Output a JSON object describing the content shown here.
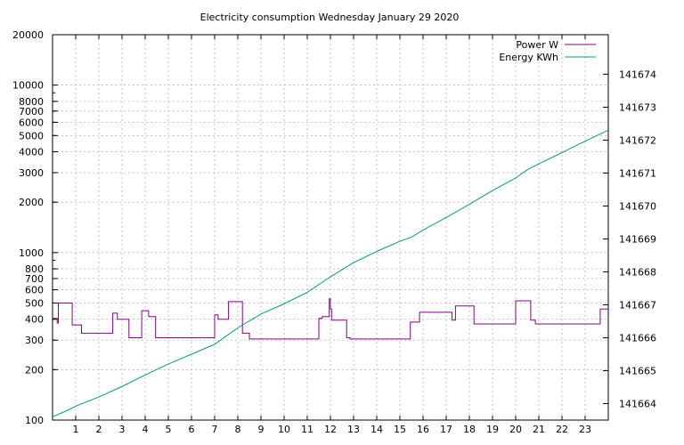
{
  "chart_data": {
    "type": "line",
    "title": "Electricity consumption Wednesday January 29 2020",
    "xlabel": "",
    "ylabel": "",
    "y2label": "",
    "grid": true,
    "legend_position": "top-right",
    "xlim": [
      0,
      24
    ],
    "x_ticks": [
      1,
      2,
      3,
      4,
      5,
      6,
      7,
      8,
      9,
      10,
      11,
      12,
      13,
      14,
      15,
      16,
      17,
      18,
      19,
      20,
      21,
      22,
      23
    ],
    "ylim": [
      100,
      20000
    ],
    "y_scale": "log",
    "y_ticks": [
      {
        "value": 100,
        "label": "100"
      },
      {
        "value": 200,
        "label": "200"
      },
      {
        "value": 300,
        "label": "300"
      },
      {
        "value": 400,
        "label": "400"
      },
      {
        "value": 500,
        "label": "500"
      },
      {
        "value": 600,
        "label": "600"
      },
      {
        "value": 700,
        "label": "700"
      },
      {
        "value": 800,
        "label": "800"
      },
      {
        "value": 1000,
        "label": "1000"
      },
      {
        "value": 2000,
        "label": "2000"
      },
      {
        "value": 3000,
        "label": "3000"
      },
      {
        "value": 4000,
        "label": "4000"
      },
      {
        "value": 5000,
        "label": "5000"
      },
      {
        "value": 6000,
        "label": "6000"
      },
      {
        "value": 7000,
        "label": "7000"
      },
      {
        "value": 8000,
        "label": "8000"
      },
      {
        "value": 10000,
        "label": "10000"
      },
      {
        "value": 20000,
        "label": "20000"
      }
    ],
    "y2lim": [
      141663.5,
      141675.2
    ],
    "y2_ticks": [
      141664,
      141665,
      141666,
      141667,
      141668,
      141669,
      141670,
      141671,
      141672,
      141673,
      141674
    ],
    "series": [
      {
        "name": "Power W",
        "axis": "y",
        "color": "#8b008b",
        "step": true,
        "points": [
          [
            0.0,
            405
          ],
          [
            0.2,
            380
          ],
          [
            0.25,
            500
          ],
          [
            0.85,
            370
          ],
          [
            1.25,
            330
          ],
          [
            2.6,
            435
          ],
          [
            2.8,
            400
          ],
          [
            3.3,
            310
          ],
          [
            3.85,
            450
          ],
          [
            4.15,
            415
          ],
          [
            4.45,
            310
          ],
          [
            7.0,
            425
          ],
          [
            7.15,
            400
          ],
          [
            7.6,
            510
          ],
          [
            8.2,
            330
          ],
          [
            8.5,
            305
          ],
          [
            11.5,
            405
          ],
          [
            11.65,
            415
          ],
          [
            11.95,
            530
          ],
          [
            12.0,
            460
          ],
          [
            12.05,
            395
          ],
          [
            12.7,
            310
          ],
          [
            12.85,
            305
          ],
          [
            15.45,
            385
          ],
          [
            15.85,
            440
          ],
          [
            17.25,
            395
          ],
          [
            17.4,
            480
          ],
          [
            18.2,
            375
          ],
          [
            20.0,
            515
          ],
          [
            20.65,
            395
          ],
          [
            20.85,
            375
          ],
          [
            23.65,
            460
          ],
          [
            24.0,
            460
          ]
        ]
      },
      {
        "name": "Energy KWh",
        "axis": "y2",
        "color": "#009e73",
        "step": false,
        "points": [
          [
            0.0,
            141663.6
          ],
          [
            0.5,
            141663.75
          ],
          [
            1.0,
            141663.92
          ],
          [
            2.0,
            141664.2
          ],
          [
            3.0,
            141664.52
          ],
          [
            4.0,
            141664.87
          ],
          [
            5.0,
            141665.2
          ],
          [
            6.0,
            141665.5
          ],
          [
            7.0,
            141665.8
          ],
          [
            8.0,
            141666.3
          ],
          [
            9.0,
            141666.72
          ],
          [
            10.0,
            141667.03
          ],
          [
            11.0,
            141667.38
          ],
          [
            12.0,
            141667.85
          ],
          [
            13.0,
            141668.28
          ],
          [
            14.0,
            141668.62
          ],
          [
            15.0,
            141668.93
          ],
          [
            15.5,
            141669.05
          ],
          [
            16.0,
            141669.27
          ],
          [
            17.0,
            141669.65
          ],
          [
            18.0,
            141670.05
          ],
          [
            19.0,
            141670.47
          ],
          [
            20.0,
            141670.85
          ],
          [
            20.5,
            141671.1
          ],
          [
            21.0,
            141671.28
          ],
          [
            22.0,
            141671.62
          ],
          [
            23.0,
            141671.97
          ],
          [
            24.0,
            141672.3
          ]
        ]
      }
    ]
  }
}
